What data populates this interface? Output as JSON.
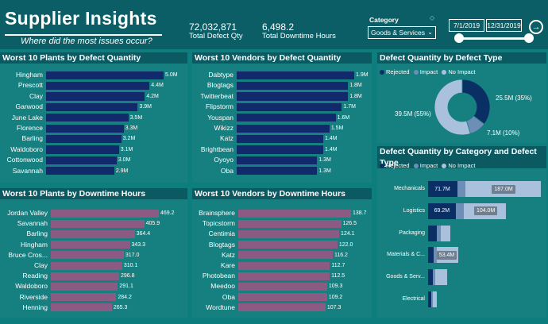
{
  "header": {
    "title": "Supplier Insights",
    "subtitle": "Where did the most issues occur?",
    "kpis": [
      {
        "value": "72,032,871",
        "label": "Total Defect Qty"
      },
      {
        "value": "6,498.2",
        "label": "Total Downtime Hours"
      }
    ],
    "category": {
      "label": "Category",
      "selected": "Goods & Services"
    },
    "date_from": "7/1/2019",
    "date_to": "12/31/2019"
  },
  "colors": {
    "bar_blue": "#12296b",
    "bar_mauve": "#8b5b83",
    "rejected": "#0a2f64",
    "impact": "#6d8eb6",
    "no_impact": "#aac1dd"
  },
  "chart_data": [
    {
      "type": "bar",
      "title": "Worst 10 Plants by Defect Quantity",
      "categories": [
        "Hingham",
        "Prescott",
        "Clay",
        "Garwood",
        "June Lake",
        "Florence",
        "Barling",
        "Waldoboro",
        "Cottonwood",
        "Savannah"
      ],
      "values": [
        5.0,
        4.4,
        4.2,
        3.9,
        3.5,
        3.3,
        3.2,
        3.1,
        3.0,
        2.9
      ],
      "labels": [
        "5.0M",
        "4.4M",
        "4.2M",
        "3.9M",
        "3.5M",
        "3.3M",
        "3.2M",
        "3.1M",
        "3.0M",
        "2.9M"
      ]
    },
    {
      "type": "bar",
      "title": "Worst 10 Vendors by Defect Quantity",
      "categories": [
        "Dabtype",
        "Blogtags",
        "Twitterbeat",
        "Flipstorm",
        "Youspan",
        "Wikizz",
        "Katz",
        "Brightbean",
        "Oyoyo",
        "Oba"
      ],
      "values": [
        1.9,
        1.8,
        1.8,
        1.7,
        1.6,
        1.5,
        1.4,
        1.4,
        1.3,
        1.3
      ],
      "labels": [
        "1.9M",
        "1.8M",
        "1.8M",
        "1.7M",
        "1.6M",
        "1.5M",
        "1.4M",
        "1.4M",
        "1.3M",
        "1.3M"
      ]
    },
    {
      "type": "bar",
      "title": "Worst 10 Plants by Downtime Hours",
      "categories": [
        "Jordan Valley",
        "Savannah",
        "Barling",
        "Hingham",
        "Bruce Cros...",
        "Clay",
        "Reading",
        "Waldoboro",
        "Riverside",
        "Henning"
      ],
      "values": [
        469.2,
        405.9,
        364.4,
        343.3,
        317.0,
        310.1,
        296.8,
        291.1,
        284.2,
        265.3
      ],
      "labels": [
        "469.2",
        "405.9",
        "364.4",
        "343.3",
        "317.0",
        "310.1",
        "296.8",
        "291.1",
        "284.2",
        "265.3"
      ]
    },
    {
      "type": "bar",
      "title": "Worst 10 Vendors by Downtime Hours",
      "categories": [
        "Brainsphere",
        "Topicstorm",
        "Centimia",
        "Blogtags",
        "Katz",
        "Kare",
        "Photobean",
        "Meedoo",
        "Oba",
        "Wordtune"
      ],
      "values": [
        138.7,
        126.5,
        124.1,
        122.0,
        116.2,
        112.7,
        112.5,
        109.3,
        109.2,
        107.3
      ],
      "labels": [
        "138.7",
        "126.5",
        "124.1",
        "122.0",
        "116.2",
        "112.7",
        "112.5",
        "109.3",
        "109.2",
        "107.3"
      ]
    },
    {
      "type": "pie",
      "title": "Defect Quantity by Defect Type",
      "categories": [
        "Rejected",
        "Impact",
        "No Impact"
      ],
      "values": [
        25.5,
        7.1,
        39.5
      ],
      "labels": [
        "25.5M (35%)",
        "7.1M (10%)",
        "39.5M (55%)"
      ]
    },
    {
      "type": "bar",
      "title": "Defect Quantity by Category and Defect Type",
      "categories": [
        "Mechanicals",
        "Logistics",
        "Packaging",
        "Materials & C...",
        "Goods & Serv...",
        "Electrical"
      ],
      "series": [
        {
          "name": "Rejected",
          "values": [
            71.7,
            69.2,
            22,
            14,
            12,
            8
          ]
        },
        {
          "name": "Impact",
          "values": [
            20,
            20,
            10,
            8,
            6,
            4
          ]
        },
        {
          "name": "No Impact",
          "values": [
            187.0,
            104.0,
            22,
            53.4,
            30,
            10
          ]
        }
      ],
      "labels": {
        "rejected": [
          "71.7M",
          "69.2M"
        ],
        "no_impact": [
          "187.0M",
          "104.0M",
          "",
          "53.4M"
        ]
      }
    }
  ],
  "legend": {
    "rejected": "Rejected",
    "impact": "Impact",
    "no_impact": "No Impact"
  }
}
